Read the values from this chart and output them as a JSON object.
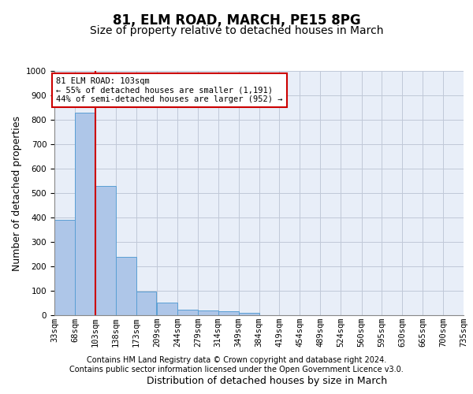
{
  "title": "81, ELM ROAD, MARCH, PE15 8PG",
  "subtitle": "Size of property relative to detached houses in March",
  "xlabel": "Distribution of detached houses by size in March",
  "ylabel": "Number of detached properties",
  "categories": [
    "33sqm",
    "68sqm",
    "103sqm",
    "138sqm",
    "173sqm",
    "209sqm",
    "244sqm",
    "279sqm",
    "314sqm",
    "349sqm",
    "384sqm",
    "419sqm",
    "454sqm",
    "489sqm",
    "524sqm",
    "560sqm",
    "595sqm",
    "630sqm",
    "665sqm",
    "700sqm",
    "735sqm"
  ],
  "bar_left_edges": [
    33,
    68,
    103,
    138,
    173,
    209,
    244,
    279,
    314,
    349,
    384,
    419,
    454,
    489,
    524,
    560,
    595,
    630,
    665,
    700
  ],
  "bin_width": 35,
  "bar_values": [
    390,
    830,
    530,
    240,
    97,
    53,
    22,
    18,
    16,
    11,
    0,
    0,
    0,
    0,
    0,
    0,
    0,
    0,
    0,
    0
  ],
  "bar_color": "#aec6e8",
  "bar_edge_color": "#5a9fd4",
  "highlight_x": 103,
  "highlight_color": "#cc0000",
  "ylim": [
    0,
    1000
  ],
  "yticks": [
    0,
    100,
    200,
    300,
    400,
    500,
    600,
    700,
    800,
    900,
    1000
  ],
  "xlim_left": 33,
  "xlim_right": 735,
  "annotation_title": "81 ELM ROAD: 103sqm",
  "annotation_line1": "← 55% of detached houses are smaller (1,191)",
  "annotation_line2": "44% of semi-detached houses are larger (952) →",
  "annotation_color": "#cc0000",
  "footer_line1": "Contains HM Land Registry data © Crown copyright and database right 2024.",
  "footer_line2": "Contains public sector information licensed under the Open Government Licence v3.0.",
  "background_color": "#e8eef8",
  "grid_color": "#c0c8d8",
  "title_fontsize": 12,
  "subtitle_fontsize": 10,
  "axis_label_fontsize": 9,
  "tick_fontsize": 7.5,
  "footer_fontsize": 7
}
